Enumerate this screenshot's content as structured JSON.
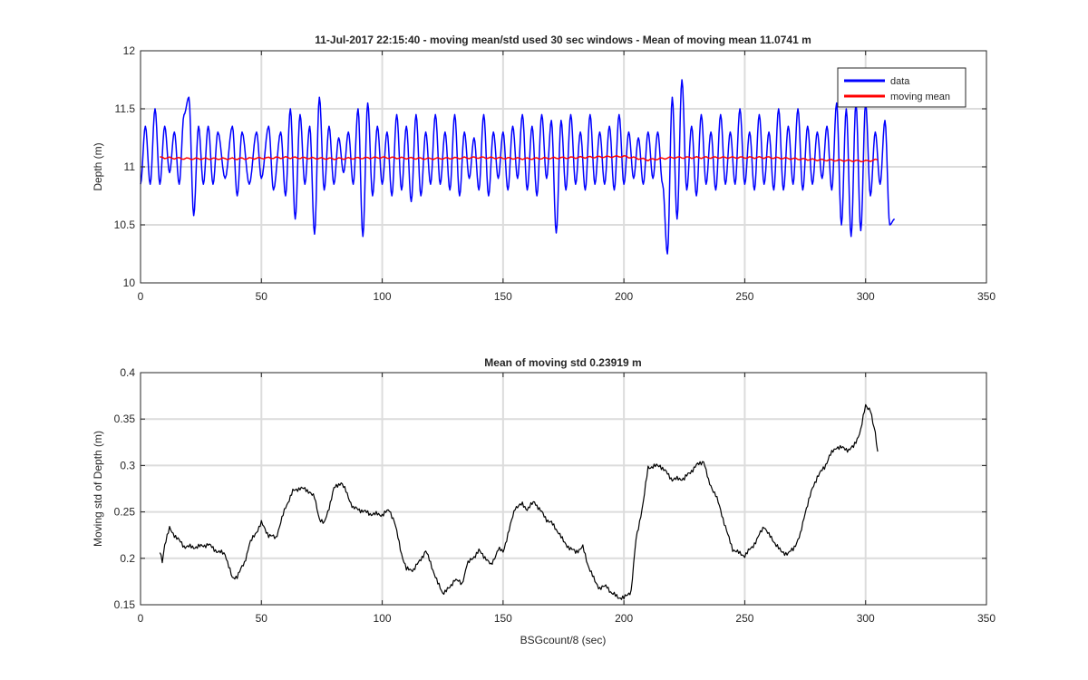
{
  "colors": {
    "data": "#0000ff",
    "moving_mean": "#ff0000",
    "moving_std": "#000000",
    "grid": "#dcdcdc",
    "axis": "#262626"
  },
  "chart_data": [
    {
      "type": "line",
      "title": "11-Jul-2017 22:15:40 - moving mean/std used 30 sec windows - Mean of moving mean 11.0741 m",
      "xlabel": "",
      "ylabel": "Depth (m)",
      "xlim": [
        0,
        350
      ],
      "ylim": [
        10,
        12
      ],
      "xticks": [
        0,
        50,
        100,
        150,
        200,
        250,
        300,
        350
      ],
      "yticks": [
        10,
        10.5,
        11,
        11.5,
        12
      ],
      "grid": true,
      "legend": {
        "placement": "top-right",
        "entries": [
          "data",
          "moving mean"
        ]
      },
      "series": [
        {
          "name": "data",
          "color": "#0000ff",
          "generator": {
            "type": "oscillation",
            "x_start": 0,
            "x_end": 312,
            "period_sec": 3.2,
            "center": 11.07
          },
          "peaks": [
            [
              0,
              10.85
            ],
            [
              2,
              11.35
            ],
            [
              4,
              10.85
            ],
            [
              6,
              11.5
            ],
            [
              8,
              10.85
            ],
            [
              10,
              11.35
            ],
            [
              12,
              10.95
            ],
            [
              14,
              11.3
            ],
            [
              16,
              10.85
            ],
            [
              18,
              11.45
            ],
            [
              20,
              11.6
            ],
            [
              22,
              10.58
            ],
            [
              24,
              11.35
            ],
            [
              26,
              10.85
            ],
            [
              28,
              11.35
            ],
            [
              30,
              10.85
            ],
            [
              32,
              11.3
            ],
            [
              35,
              10.9
            ],
            [
              38,
              11.35
            ],
            [
              40,
              10.75
            ],
            [
              42,
              11.3
            ],
            [
              45,
              10.85
            ],
            [
              48,
              11.3
            ],
            [
              50,
              10.9
            ],
            [
              53,
              11.35
            ],
            [
              55,
              10.8
            ],
            [
              58,
              11.3
            ],
            [
              60,
              10.75
            ],
            [
              62,
              11.5
            ],
            [
              64,
              10.55
            ],
            [
              66,
              11.45
            ],
            [
              68,
              10.85
            ],
            [
              70,
              11.35
            ],
            [
              72,
              10.42
            ],
            [
              74,
              11.6
            ],
            [
              76,
              10.8
            ],
            [
              78,
              11.35
            ],
            [
              80,
              10.85
            ],
            [
              82,
              11.25
            ],
            [
              84,
              10.95
            ],
            [
              86,
              11.3
            ],
            [
              88,
              10.85
            ],
            [
              90,
              11.5
            ],
            [
              92,
              10.4
            ],
            [
              94,
              11.55
            ],
            [
              96,
              10.75
            ],
            [
              98,
              11.35
            ],
            [
              100,
              10.85
            ],
            [
              102,
              11.3
            ],
            [
              104,
              10.75
            ],
            [
              106,
              11.45
            ],
            [
              108,
              10.8
            ],
            [
              110,
              11.35
            ],
            [
              112,
              10.7
            ],
            [
              114,
              11.45
            ],
            [
              116,
              10.75
            ],
            [
              118,
              11.3
            ],
            [
              120,
              10.85
            ],
            [
              122,
              11.45
            ],
            [
              124,
              10.85
            ],
            [
              126,
              11.3
            ],
            [
              128,
              10.8
            ],
            [
              130,
              11.45
            ],
            [
              132,
              10.75
            ],
            [
              134,
              11.3
            ],
            [
              136,
              10.9
            ],
            [
              138,
              11.25
            ],
            [
              140,
              10.8
            ],
            [
              142,
              11.45
            ],
            [
              144,
              10.75
            ],
            [
              146,
              11.3
            ],
            [
              148,
              10.9
            ],
            [
              150,
              11.3
            ],
            [
              152,
              10.8
            ],
            [
              154,
              11.35
            ],
            [
              156,
              10.9
            ],
            [
              158,
              11.45
            ],
            [
              160,
              10.8
            ],
            [
              162,
              11.35
            ],
            [
              164,
              10.75
            ],
            [
              166,
              11.45
            ],
            [
              168,
              10.9
            ],
            [
              170,
              11.4
            ],
            [
              172,
              10.43
            ],
            [
              174,
              11.4
            ],
            [
              176,
              10.8
            ],
            [
              178,
              11.45
            ],
            [
              180,
              10.85
            ],
            [
              182,
              11.3
            ],
            [
              184,
              10.8
            ],
            [
              186,
              11.45
            ],
            [
              188,
              10.85
            ],
            [
              190,
              11.3
            ],
            [
              192,
              10.85
            ],
            [
              194,
              11.35
            ],
            [
              196,
              10.8
            ],
            [
              198,
              11.45
            ],
            [
              200,
              10.85
            ],
            [
              202,
              11.3
            ],
            [
              204,
              10.9
            ],
            [
              206,
              11.25
            ],
            [
              208,
              10.85
            ],
            [
              210,
              11.3
            ],
            [
              212,
              10.9
            ],
            [
              214,
              11.3
            ],
            [
              216,
              10.85
            ],
            [
              218,
              10.25
            ],
            [
              220,
              11.6
            ],
            [
              222,
              10.55
            ],
            [
              224,
              11.75
            ],
            [
              226,
              10.8
            ],
            [
              228,
              11.35
            ],
            [
              230,
              10.75
            ],
            [
              232,
              11.45
            ],
            [
              234,
              10.85
            ],
            [
              236,
              11.3
            ],
            [
              238,
              10.8
            ],
            [
              240,
              11.45
            ],
            [
              242,
              10.85
            ],
            [
              244,
              11.3
            ],
            [
              246,
              10.85
            ],
            [
              248,
              11.5
            ],
            [
              250,
              10.85
            ],
            [
              252,
              11.3
            ],
            [
              254,
              10.8
            ],
            [
              256,
              11.45
            ],
            [
              258,
              10.85
            ],
            [
              260,
              11.3
            ],
            [
              262,
              10.8
            ],
            [
              264,
              11.5
            ],
            [
              266,
              10.8
            ],
            [
              268,
              11.35
            ],
            [
              270,
              10.85
            ],
            [
              272,
              11.5
            ],
            [
              274,
              10.8
            ],
            [
              276,
              11.35
            ],
            [
              278,
              10.85
            ],
            [
              280,
              11.3
            ],
            [
              282,
              10.9
            ],
            [
              284,
              11.35
            ],
            [
              286,
              10.8
            ],
            [
              288,
              11.55
            ],
            [
              290,
              10.5
            ],
            [
              292,
              11.5
            ],
            [
              294,
              10.4
            ],
            [
              296,
              11.55
            ],
            [
              298,
              10.45
            ],
            [
              300,
              11.55
            ],
            [
              302,
              10.75
            ],
            [
              304,
              11.3
            ],
            [
              306,
              10.85
            ],
            [
              308,
              11.4
            ],
            [
              310,
              10.5
            ],
            [
              312,
              10.55
            ]
          ]
        },
        {
          "name": "moving mean",
          "color": "#ff0000",
          "x": [
            8,
            20,
            40,
            60,
            80,
            100,
            120,
            140,
            160,
            180,
            200,
            210,
            220,
            240,
            260,
            280,
            300,
            305
          ],
          "y": [
            11.08,
            11.07,
            11.07,
            11.08,
            11.07,
            11.08,
            11.07,
            11.08,
            11.07,
            11.08,
            11.09,
            11.06,
            11.08,
            11.08,
            11.08,
            11.06,
            11.05,
            11.06
          ]
        }
      ]
    },
    {
      "type": "line",
      "title": "Mean of moving std 0.23919 m",
      "xlabel": "BSGcount/8 (sec)",
      "ylabel": "Moving std of Depth (m)",
      "xlim": [
        0,
        350
      ],
      "ylim": [
        0.15,
        0.4
      ],
      "xticks": [
        0,
        50,
        100,
        150,
        200,
        250,
        300,
        350
      ],
      "yticks": [
        0.15,
        0.2,
        0.25,
        0.3,
        0.35,
        0.4
      ],
      "grid": true,
      "series": [
        {
          "name": "",
          "color": "#000000",
          "x": [
            8,
            9,
            10,
            12,
            15,
            18,
            22,
            25,
            28,
            32,
            35,
            38,
            40,
            43,
            45,
            50,
            53,
            56,
            60,
            63,
            66,
            70,
            72,
            74,
            76,
            78,
            80,
            83,
            85,
            88,
            90,
            95,
            100,
            103,
            105,
            108,
            110,
            113,
            115,
            118,
            120,
            123,
            125,
            128,
            130,
            133,
            135,
            138,
            140,
            143,
            145,
            148,
            150,
            153,
            155,
            158,
            160,
            163,
            165,
            168,
            170,
            173,
            175,
            178,
            180,
            183,
            185,
            188,
            190,
            193,
            195,
            198,
            200,
            203,
            205,
            208,
            210,
            215,
            220,
            225,
            230,
            233,
            235,
            238,
            240,
            243,
            245,
            248,
            250,
            253,
            255,
            258,
            260,
            263,
            265,
            268,
            270,
            273,
            275,
            278,
            280,
            283,
            285,
            288,
            290,
            293,
            295,
            298,
            300,
            302,
            303,
            304,
            305
          ],
          "y": [
            0.207,
            0.197,
            0.215,
            0.232,
            0.222,
            0.213,
            0.212,
            0.213,
            0.215,
            0.207,
            0.205,
            0.178,
            0.181,
            0.195,
            0.215,
            0.238,
            0.225,
            0.222,
            0.255,
            0.272,
            0.276,
            0.272,
            0.265,
            0.243,
            0.237,
            0.255,
            0.275,
            0.282,
            0.272,
            0.254,
            0.253,
            0.248,
            0.247,
            0.252,
            0.24,
            0.205,
            0.188,
            0.188,
            0.195,
            0.208,
            0.195,
            0.173,
            0.163,
            0.168,
            0.178,
            0.172,
            0.193,
            0.202,
            0.208,
            0.2,
            0.192,
            0.21,
            0.207,
            0.235,
            0.255,
            0.258,
            0.253,
            0.261,
            0.253,
            0.242,
            0.238,
            0.228,
            0.218,
            0.21,
            0.207,
            0.212,
            0.194,
            0.175,
            0.168,
            0.17,
            0.162,
            0.158,
            0.157,
            0.165,
            0.22,
            0.26,
            0.298,
            0.3,
            0.285,
            0.286,
            0.3,
            0.305,
            0.283,
            0.268,
            0.252,
            0.225,
            0.21,
            0.205,
            0.203,
            0.212,
            0.22,
            0.235,
            0.225,
            0.215,
            0.207,
            0.205,
            0.21,
            0.225,
            0.25,
            0.275,
            0.288,
            0.298,
            0.31,
            0.32,
            0.319,
            0.317,
            0.32,
            0.338,
            0.365,
            0.36,
            0.345,
            0.335,
            0.315
          ]
        }
      ]
    }
  ]
}
